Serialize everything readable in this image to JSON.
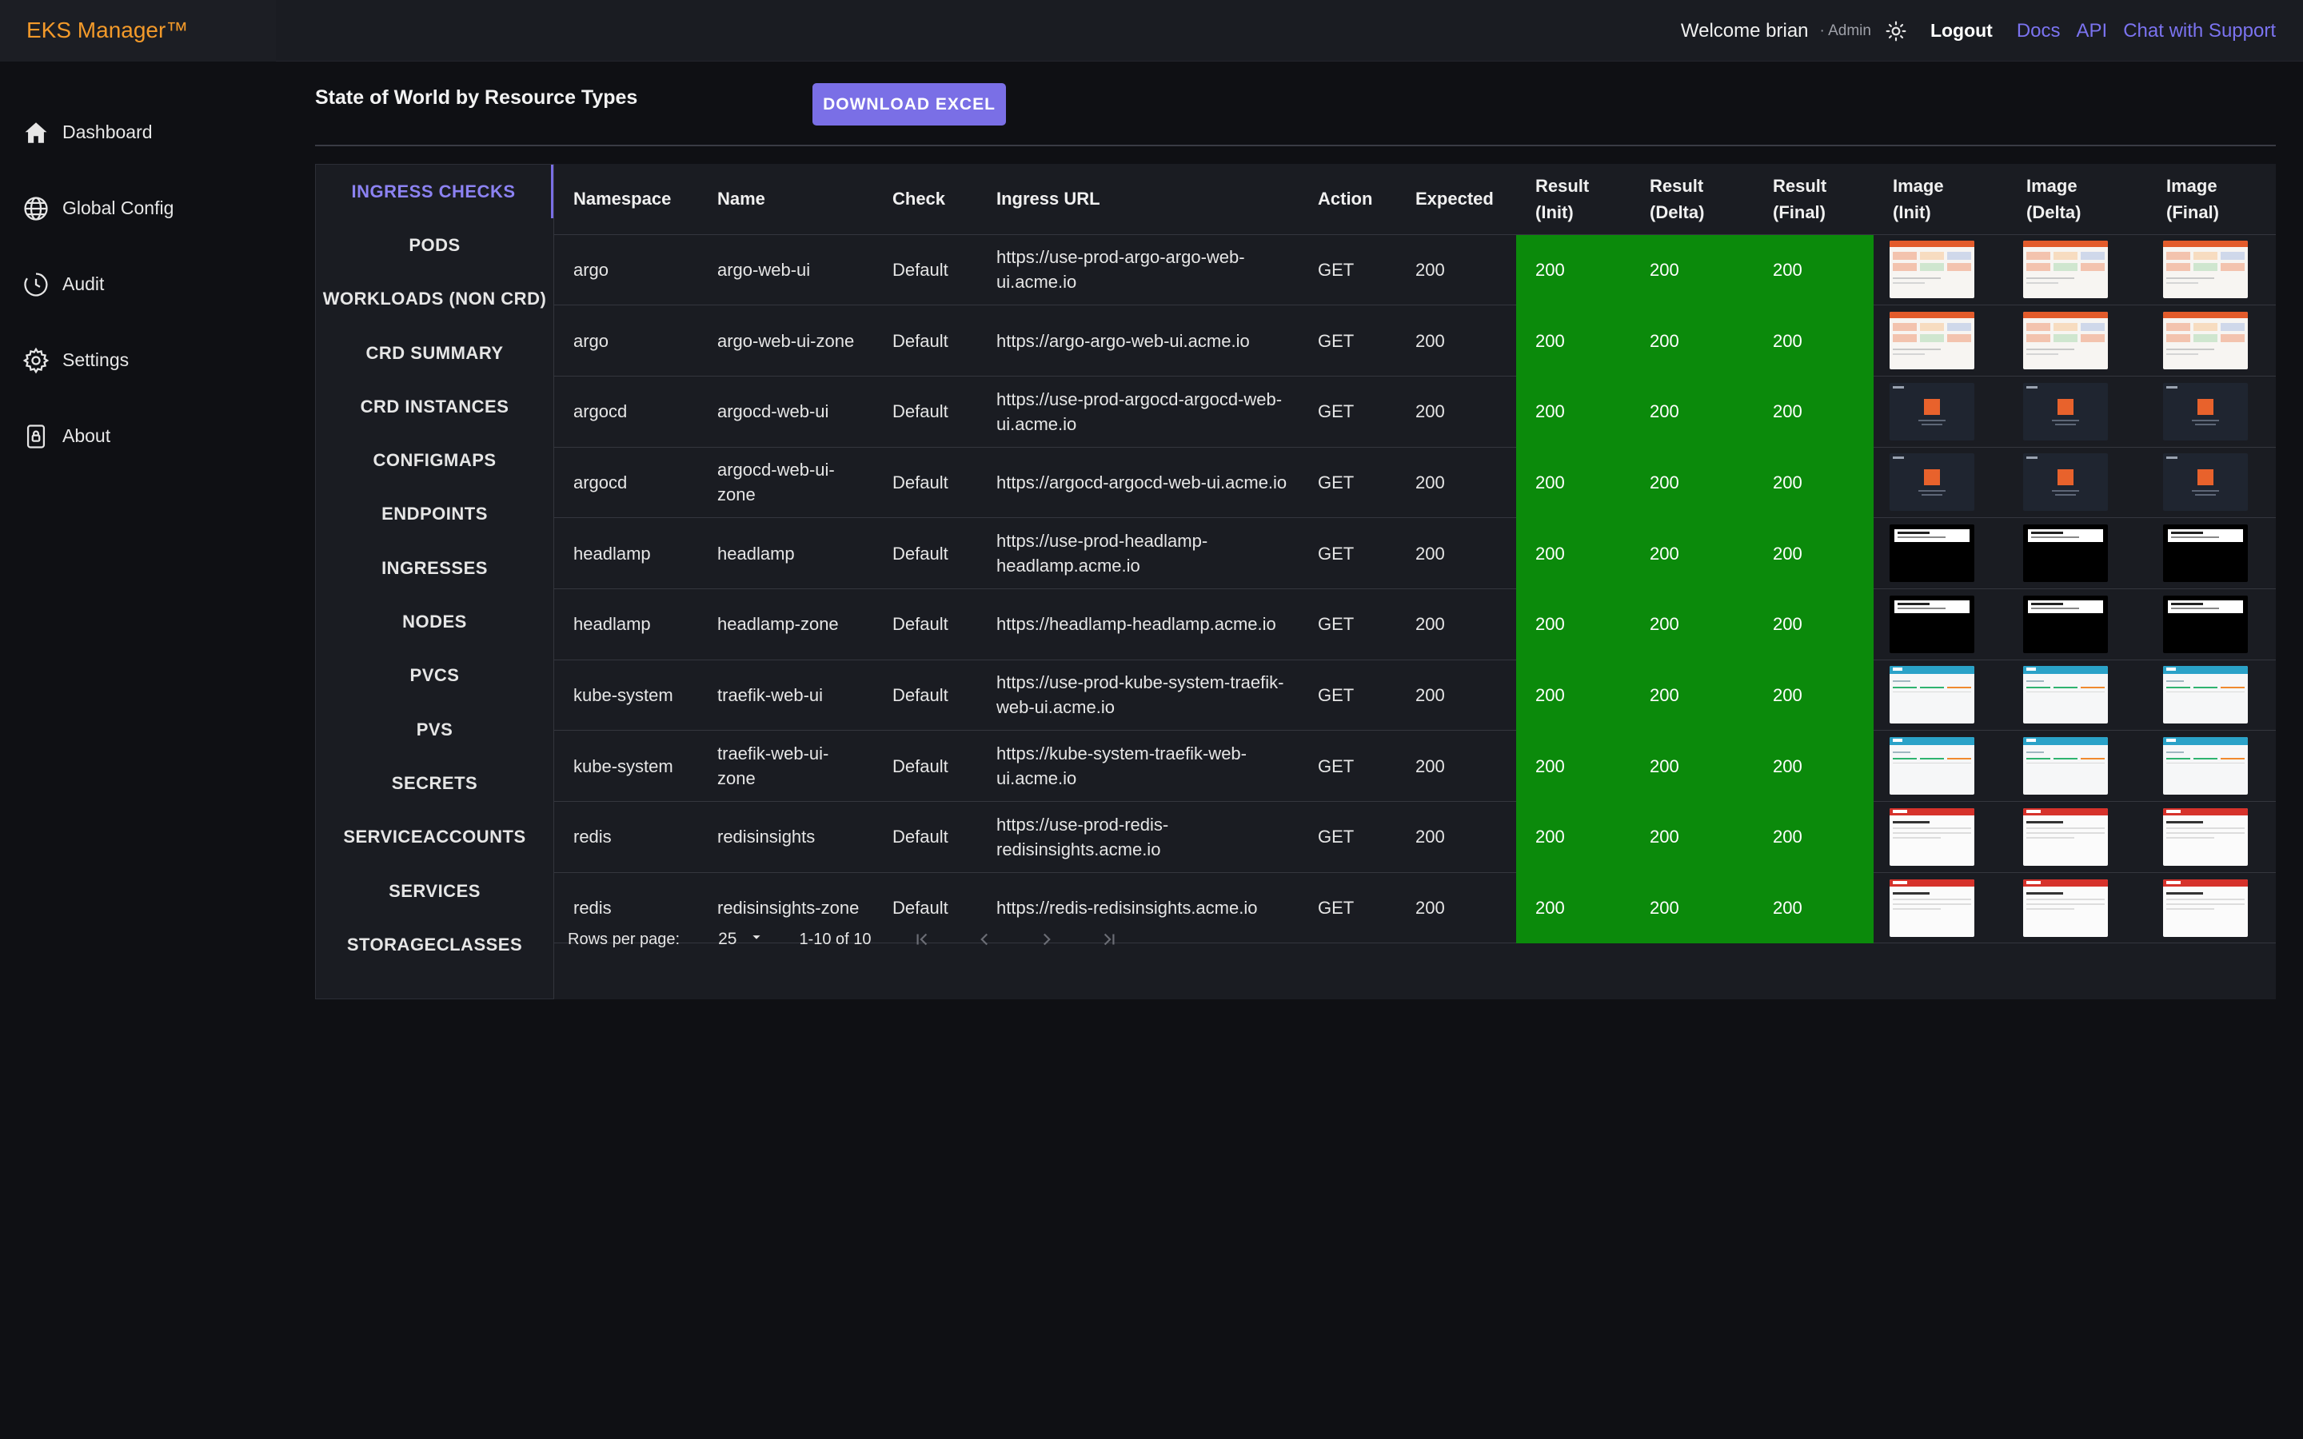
{
  "app": {
    "brand": "EKS Manager™",
    "welcome": "Welcome brian",
    "role": "· Admin",
    "logout": "Logout",
    "links": [
      "Docs",
      "API",
      "Chat with Support"
    ]
  },
  "sidebar": {
    "items": [
      {
        "label": "Dashboard",
        "icon": "home-icon"
      },
      {
        "label": "Global Config",
        "icon": "globe-icon"
      },
      {
        "label": "Audit",
        "icon": "history-icon"
      },
      {
        "label": "Settings",
        "icon": "gear-icon"
      },
      {
        "label": "About",
        "icon": "lock-icon"
      }
    ]
  },
  "main": {
    "title": "State of World by Resource Types",
    "download_label": "DOWNLOAD EXCEL"
  },
  "tabs": [
    "INGRESS CHECKS",
    "PODS",
    "WORKLOADS (NON CRD)",
    "CRD SUMMARY",
    "CRD INSTANCES",
    "CONFIGMAPS",
    "ENDPOINTS",
    "INGRESSES",
    "NODES",
    "PVCS",
    "PVS",
    "SECRETS",
    "SERVICEACCOUNTS",
    "SERVICES",
    "STORAGECLASSES"
  ],
  "active_tab": "INGRESS CHECKS",
  "table": {
    "columns": [
      "Namespace",
      "Name",
      "Check",
      "Ingress URL",
      "Action",
      "Expected",
      "Result (Init)",
      "Result (Delta)",
      "Result (Final)",
      "Image (Init)",
      "Image (Delta)",
      "Image (Final)"
    ],
    "rows": [
      {
        "namespace": "argo",
        "name": "argo-web-ui",
        "check": "Default",
        "url": "https://use-prod-argo-argo-web-ui.acme.io",
        "action": "GET",
        "expected": "200",
        "init": "200",
        "delta": "200",
        "final": "200",
        "thumb": "argo"
      },
      {
        "namespace": "argo",
        "name": "argo-web-ui-zone",
        "check": "Default",
        "url": "https://argo-argo-web-ui.acme.io",
        "action": "GET",
        "expected": "200",
        "init": "200",
        "delta": "200",
        "final": "200",
        "thumb": "argo"
      },
      {
        "namespace": "argocd",
        "name": "argocd-web-ui",
        "check": "Default",
        "url": "https://use-prod-argocd-argocd-web-ui.acme.io",
        "action": "GET",
        "expected": "200",
        "init": "200",
        "delta": "200",
        "final": "200",
        "thumb": "argocd"
      },
      {
        "namespace": "argocd",
        "name": "argocd-web-ui-zone",
        "check": "Default",
        "url": "https://argocd-argocd-web-ui.acme.io",
        "action": "GET",
        "expected": "200",
        "init": "200",
        "delta": "200",
        "final": "200",
        "thumb": "argocd"
      },
      {
        "namespace": "headlamp",
        "name": "headlamp",
        "check": "Default",
        "url": "https://use-prod-headlamp-headlamp.acme.io",
        "action": "GET",
        "expected": "200",
        "init": "200",
        "delta": "200",
        "final": "200",
        "thumb": "headlamp"
      },
      {
        "namespace": "headlamp",
        "name": "headlamp-zone",
        "check": "Default",
        "url": "https://headlamp-headlamp.acme.io",
        "action": "GET",
        "expected": "200",
        "init": "200",
        "delta": "200",
        "final": "200",
        "thumb": "headlamp"
      },
      {
        "namespace": "kube-system",
        "name": "traefik-web-ui",
        "check": "Default",
        "url": "https://use-prod-kube-system-traefik-web-ui.acme.io",
        "action": "GET",
        "expected": "200",
        "init": "200",
        "delta": "200",
        "final": "200",
        "thumb": "traefik"
      },
      {
        "namespace": "kube-system",
        "name": "traefik-web-ui-zone",
        "check": "Default",
        "url": "https://kube-system-traefik-web-ui.acme.io",
        "action": "GET",
        "expected": "200",
        "init": "200",
        "delta": "200",
        "final": "200",
        "thumb": "traefik"
      },
      {
        "namespace": "redis",
        "name": "redisinsights",
        "check": "Default",
        "url": "https://use-prod-redis-redisinsights.acme.io",
        "action": "GET",
        "expected": "200",
        "init": "200",
        "delta": "200",
        "final": "200",
        "thumb": "redis"
      },
      {
        "namespace": "redis",
        "name": "redisinsights-zone",
        "check": "Default",
        "url": "https://redis-redisinsights.acme.io",
        "action": "GET",
        "expected": "200",
        "init": "200",
        "delta": "200",
        "final": "200",
        "thumb": "redis"
      }
    ]
  },
  "pagination": {
    "rows_per_page_label": "Rows per page:",
    "rows_per_page_value": "25",
    "range": "1-10 of 10"
  },
  "colors": {
    "brand": "#f39a2a",
    "accent": "#7a6fe6",
    "success": "#0b8a0b",
    "link": "#7b73f0"
  }
}
